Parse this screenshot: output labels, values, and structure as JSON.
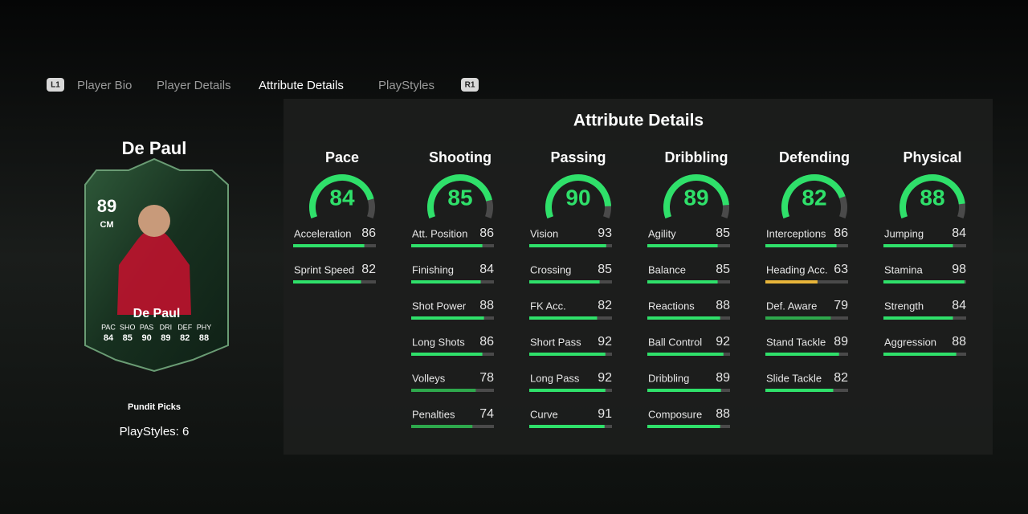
{
  "tabs": {
    "left_button": "L1",
    "items": [
      "Player Bio",
      "Player Details",
      "Attribute Details",
      "PlayStyles"
    ],
    "right_button": "R1"
  },
  "player": {
    "name": "De Paul",
    "card": {
      "rating": 89,
      "position": "CM",
      "name": "De Paul",
      "stat_labels": [
        "PAC",
        "SHO",
        "PAS",
        "DRI",
        "DEF",
        "PHY"
      ],
      "stat_values": [
        84,
        85,
        90,
        89,
        82,
        88
      ]
    },
    "program": "Pundit Picks",
    "playstyles": "PlayStyles: 6"
  },
  "panel": {
    "title": "Attribute Details",
    "categories": [
      {
        "name": "Pace",
        "value": 84,
        "attributes": [
          {
            "name": "Acceleration",
            "value": 86
          },
          {
            "name": "Sprint Speed",
            "value": 82
          }
        ]
      },
      {
        "name": "Shooting",
        "value": 85,
        "attributes": [
          {
            "name": "Att. Position",
            "value": 86
          },
          {
            "name": "Finishing",
            "value": 84
          },
          {
            "name": "Shot Power",
            "value": 88
          },
          {
            "name": "Long Shots",
            "value": 86
          },
          {
            "name": "Volleys",
            "value": 78
          },
          {
            "name": "Penalties",
            "value": 74
          }
        ]
      },
      {
        "name": "Passing",
        "value": 90,
        "attributes": [
          {
            "name": "Vision",
            "value": 93
          },
          {
            "name": "Crossing",
            "value": 85
          },
          {
            "name": "FK Acc.",
            "value": 82
          },
          {
            "name": "Short Pass",
            "value": 92
          },
          {
            "name": "Long Pass",
            "value": 92
          },
          {
            "name": "Curve",
            "value": 91
          }
        ]
      },
      {
        "name": "Dribbling",
        "value": 89,
        "attributes": [
          {
            "name": "Agility",
            "value": 85
          },
          {
            "name": "Balance",
            "value": 85
          },
          {
            "name": "Reactions",
            "value": 88
          },
          {
            "name": "Ball Control",
            "value": 92
          },
          {
            "name": "Dribbling",
            "value": 89
          },
          {
            "name": "Composure",
            "value": 88
          }
        ]
      },
      {
        "name": "Defending",
        "value": 82,
        "attributes": [
          {
            "name": "Interceptions",
            "value": 86
          },
          {
            "name": "Heading Acc.",
            "value": 63
          },
          {
            "name": "Def. Aware",
            "value": 79
          },
          {
            "name": "Stand Tackle",
            "value": 89
          },
          {
            "name": "Slide Tackle",
            "value": 82
          }
        ]
      },
      {
        "name": "Physical",
        "value": 88,
        "attributes": [
          {
            "name": "Jumping",
            "value": 84
          },
          {
            "name": "Stamina",
            "value": 98
          },
          {
            "name": "Strength",
            "value": 84
          },
          {
            "name": "Aggression",
            "value": 88
          }
        ]
      }
    ]
  }
}
